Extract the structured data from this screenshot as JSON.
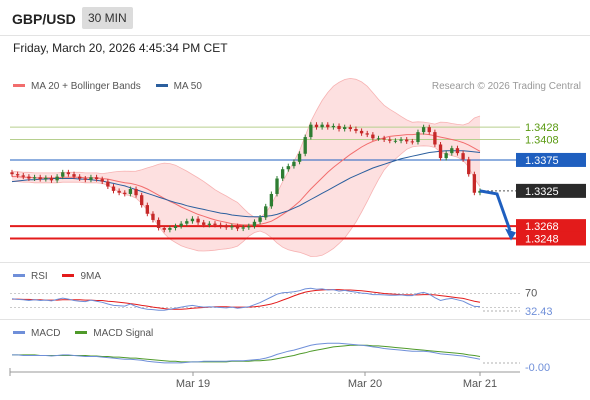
{
  "header": {
    "pair": "GBP/USD",
    "timeframe": "30 MIN",
    "datetime": "Friday, March 20, 2026 4:45:34 PM CET"
  },
  "legend": {
    "ma20": "MA 20 + Bollinger Bands",
    "ma50": "MA 50",
    "credit": "Research © 2026 Trading Central"
  },
  "colors": {
    "up": "#2e7d32",
    "down": "#c62828",
    "ma20": "#f26d6d",
    "ma50": "#2b5f9e",
    "bollinger_fill": "#fde0e0",
    "resistance": "#b6cf8e",
    "resistance_text": "#5a9a12",
    "pivot": "#1f5fbf",
    "support": "#e31b1b",
    "rsi": "#6f8fd9",
    "rsi_ma": "#e31b1b",
    "macd": "#6f8fd9",
    "macd_signal": "#4f9a2a"
  },
  "levels": {
    "resistance_2": "1.3428",
    "resistance_1": "1.3408",
    "pivot": "1.3375",
    "last_price": "1.3325",
    "support_1": "1.3268",
    "support_2": "1.3248"
  },
  "rsi_panel": {
    "rsi_label": "RSI",
    "ma_label": "9MA",
    "overbought": "70",
    "value": "32.43"
  },
  "macd_panel": {
    "macd_label": "MACD",
    "signal_label": "MACD Signal",
    "value": "-0.00"
  },
  "x_axis": {
    "labels": [
      "Mar 19",
      "Mar 20",
      "Mar 21"
    ]
  },
  "chart_data": {
    "type": "candlestick",
    "price_ylim": [
      1.321,
      1.348
    ],
    "closes": [
      1.3352,
      1.335,
      1.3348,
      1.3345,
      1.3347,
      1.3344,
      1.3346,
      1.3342,
      1.3348,
      1.3355,
      1.3352,
      1.3348,
      1.3345,
      1.3343,
      1.3347,
      1.3344,
      1.334,
      1.3332,
      1.3325,
      1.3322,
      1.332,
      1.3328,
      1.3318,
      1.3302,
      1.3288,
      1.3278,
      1.3265,
      1.3262,
      1.3265,
      1.3268,
      1.3272,
      1.3276,
      1.328,
      1.3274,
      1.327,
      1.3272,
      1.327,
      1.3268,
      1.3266,
      1.3268,
      1.3264,
      1.3266,
      1.3268,
      1.3275,
      1.3282,
      1.33,
      1.332,
      1.3345,
      1.336,
      1.3365,
      1.3372,
      1.3385,
      1.3412,
      1.3432,
      1.3428,
      1.3432,
      1.3428,
      1.343,
      1.3425,
      1.3428,
      1.3425,
      1.3422,
      1.3418,
      1.3416,
      1.341,
      1.341,
      1.3408,
      1.3406,
      1.3406,
      1.3408,
      1.3405,
      1.3404,
      1.342,
      1.3428,
      1.342,
      1.34,
      1.3378,
      1.3386,
      1.3394,
      1.3386,
      1.3376,
      1.3352,
      1.3322,
      1.3325
    ],
    "ma20": [
      1.3348,
      1.3348,
      1.3347,
      1.3347,
      1.3346,
      1.3346,
      1.3346,
      1.3346,
      1.3346,
      1.3347,
      1.3347,
      1.3347,
      1.3347,
      1.3346,
      1.3346,
      1.3346,
      1.3345,
      1.3344,
      1.3342,
      1.334,
      1.3338,
      1.3337,
      1.3335,
      1.3332,
      1.3328,
      1.3323,
      1.3318,
      1.3313,
      1.3308,
      1.3304,
      1.3299,
      1.3295,
      1.3291,
      1.3287,
      1.3284,
      1.3281,
      1.3278,
      1.3276,
      1.3274,
      1.3272,
      1.3271,
      1.327,
      1.327,
      1.327,
      1.3271,
      1.3273,
      1.3276,
      1.3281,
      1.3287,
      1.3293,
      1.33,
      1.3308,
      1.3318,
      1.3328,
      1.3337,
      1.3346,
      1.3355,
      1.3363,
      1.337,
      1.3377,
      1.3384,
      1.339,
      1.3396,
      1.3401,
      1.3405,
      1.3408,
      1.3411,
      1.3413,
      1.3414,
      1.3415,
      1.3416,
      1.3416,
      1.3417,
      1.3417,
      1.3416,
      1.3414,
      1.3412,
      1.341,
      1.3408,
      1.3406,
      1.3403,
      1.3399,
      1.3394,
      1.3389
    ],
    "ma50": [
      1.334,
      1.3341,
      1.3342,
      1.3343,
      1.3343,
      1.3344,
      1.3344,
      1.3345,
      1.3345,
      1.3345,
      1.3345,
      1.3345,
      1.3344,
      1.3344,
      1.3343,
      1.3342,
      1.3341,
      1.3339,
      1.3337,
      1.3335,
      1.3333,
      1.333,
      1.3327,
      1.3324,
      1.3321,
      1.3318,
      1.3315,
      1.3312,
      1.3309,
      1.3306,
      1.3304,
      1.3301,
      1.3299,
      1.3297,
      1.3295,
      1.3293,
      1.3291,
      1.3289,
      1.3288,
      1.3286,
      1.3285,
      1.3284,
      1.3283,
      1.3283,
      1.3283,
      1.3284,
      1.3285,
      1.3287,
      1.329,
      1.3293,
      1.3297,
      1.3301,
      1.3306,
      1.3311,
      1.3316,
      1.3321,
      1.3326,
      1.3331,
      1.3336,
      1.3341,
      1.3346,
      1.335,
      1.3354,
      1.3358,
      1.3362,
      1.3365,
      1.3368,
      1.3371,
      1.3374,
      1.3377,
      1.3379,
      1.3381,
      1.3383,
      1.3385,
      1.3387,
      1.3388,
      1.3389,
      1.339,
      1.339,
      1.339,
      1.339,
      1.3389,
      1.3388,
      1.3387
    ],
    "rsi_ylim": [
      0,
      100
    ],
    "rsi": [
      55,
      53,
      52,
      50,
      52,
      50,
      51,
      49,
      53,
      57,
      54,
      50,
      48,
      47,
      51,
      48,
      45,
      40,
      36,
      35,
      34,
      40,
      33,
      28,
      25,
      24,
      22,
      22,
      25,
      28,
      31,
      34,
      36,
      33,
      31,
      32,
      31,
      30,
      29,
      31,
      28,
      30,
      32,
      38,
      44,
      52,
      60,
      68,
      72,
      73,
      75,
      78,
      83,
      85,
      82,
      83,
      80,
      81,
      77,
      79,
      76,
      74,
      71,
      70,
      67,
      67,
      66,
      65,
      65,
      66,
      64,
      64,
      70,
      73,
      68,
      58,
      50,
      54,
      56,
      52,
      48,
      40,
      33,
      32.43
    ],
    "rsi_ma": [
      54,
      54,
      53,
      53,
      52,
      52,
      51,
      51,
      51,
      52,
      52,
      52,
      52,
      51,
      51,
      50,
      50,
      48,
      47,
      45,
      43,
      41,
      39,
      36,
      34,
      31,
      29,
      27,
      25,
      25,
      25,
      26,
      28,
      29,
      30,
      31,
      32,
      32,
      32,
      31,
      31,
      31,
      31,
      32,
      34,
      37,
      40,
      45,
      51,
      57,
      63,
      69,
      74,
      77,
      79,
      80,
      81,
      81,
      81,
      80,
      80,
      79,
      78,
      76,
      74,
      72,
      70,
      69,
      68,
      67,
      66,
      66,
      66,
      67,
      67,
      66,
      64,
      62,
      60,
      58,
      56,
      52,
      48,
      45
    ],
    "macd_ylim": [
      -0.003,
      0.003
    ],
    "macd": [
      0.0002,
      0.0002,
      0.0001,
      0.0001,
      0.0001,
      0.0001,
      0.0001,
      0.0,
      0.0001,
      0.0002,
      0.0002,
      0.0001,
      0.0,
      -0.0001,
      -0.0001,
      -0.0001,
      -0.0002,
      -0.0003,
      -0.0004,
      -0.0005,
      -0.0006,
      -0.0006,
      -0.0007,
      -0.0008,
      -0.001,
      -0.0011,
      -0.0012,
      -0.0013,
      -0.0013,
      -0.0013,
      -0.0013,
      -0.0012,
      -0.0011,
      -0.0011,
      -0.001,
      -0.001,
      -0.001,
      -0.001,
      -0.001,
      -0.0009,
      -0.0009,
      -0.0009,
      -0.0008,
      -0.0007,
      -0.0006,
      -0.0004,
      -0.0001,
      0.0003,
      0.0006,
      0.0009,
      0.0011,
      0.0014,
      0.0017,
      0.002,
      0.0022,
      0.0023,
      0.0024,
      0.0024,
      0.0024,
      0.0023,
      0.0022,
      0.0021,
      0.002,
      0.0019,
      0.0017,
      0.0016,
      0.0014,
      0.0013,
      0.0012,
      0.0011,
      0.001,
      0.0009,
      0.0009,
      0.0009,
      0.0008,
      0.0006,
      0.0004,
      0.0003,
      0.0002,
      0.0001,
      0.0,
      -0.0002,
      -0.0004,
      -0.0006
    ],
    "macd_signal": [
      0.0002,
      0.0002,
      0.0002,
      0.0002,
      0.0002,
      0.0001,
      0.0001,
      0.0001,
      0.0001,
      0.0001,
      0.0001,
      0.0001,
      0.0001,
      0.0001,
      0.0,
      0.0,
      -0.0001,
      -0.0001,
      -0.0002,
      -0.0002,
      -0.0003,
      -0.0004,
      -0.0004,
      -0.0005,
      -0.0006,
      -0.0007,
      -0.0008,
      -0.0009,
      -0.001,
      -0.001,
      -0.0011,
      -0.0011,
      -0.0011,
      -0.0011,
      -0.0011,
      -0.0011,
      -0.0011,
      -0.0011,
      -0.0011,
      -0.001,
      -0.001,
      -0.001,
      -0.001,
      -0.0009,
      -0.0009,
      -0.0008,
      -0.0007,
      -0.0005,
      -0.0003,
      -0.0001,
      0.0001,
      0.0004,
      0.0006,
      0.0009,
      0.0011,
      0.0013,
      0.0015,
      0.0017,
      0.0018,
      0.0019,
      0.002,
      0.002,
      0.002,
      0.002,
      0.0019,
      0.0019,
      0.0018,
      0.0017,
      0.0016,
      0.0015,
      0.0014,
      0.0013,
      0.0012,
      0.0011,
      0.001,
      0.0009,
      0.0008,
      0.0007,
      0.0006,
      0.0005,
      0.0004,
      0.0002,
      0.0001,
      -0.0001
    ]
  }
}
